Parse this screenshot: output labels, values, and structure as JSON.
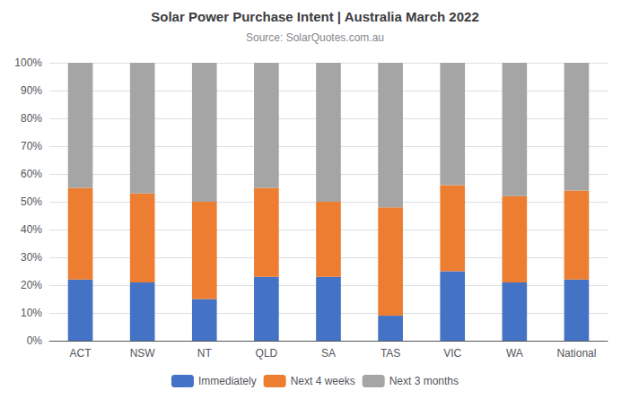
{
  "chart_data": {
    "type": "bar",
    "title": "Solar Power Purchase Intent | Australia March 2022",
    "subtitle": "Source: SolarQuotes.com.au",
    "categories": [
      "ACT",
      "NSW",
      "NT",
      "QLD",
      "SA",
      "TAS",
      "VIC",
      "WA",
      "National"
    ],
    "series": [
      {
        "name": "Immediately",
        "color": "#4472C4",
        "values": [
          22,
          21,
          15,
          23,
          23,
          9,
          25,
          21,
          22
        ]
      },
      {
        "name": "Next 4 weeks",
        "color": "#ED7D31",
        "values": [
          33,
          32,
          35,
          32,
          27,
          39,
          31,
          31,
          32
        ]
      },
      {
        "name": "Next 3 months",
        "color": "#A5A5A5",
        "values": [
          45,
          47,
          50,
          45,
          50,
          52,
          44,
          48,
          46
        ]
      }
    ],
    "stacked": true,
    "ylim": [
      0,
      100
    ],
    "yticks": [
      {
        "value": 0,
        "label": "0%"
      },
      {
        "value": 10,
        "label": "10%"
      },
      {
        "value": 20,
        "label": "20%"
      },
      {
        "value": 30,
        "label": "30%"
      },
      {
        "value": 40,
        "label": "40%"
      },
      {
        "value": 50,
        "label": "50%"
      },
      {
        "value": 60,
        "label": "60%"
      },
      {
        "value": 70,
        "label": "70%"
      },
      {
        "value": 80,
        "label": "80%"
      },
      {
        "value": 90,
        "label": "90%"
      },
      {
        "value": 100,
        "label": "100%"
      }
    ],
    "grid": true,
    "legend": "bottom"
  }
}
